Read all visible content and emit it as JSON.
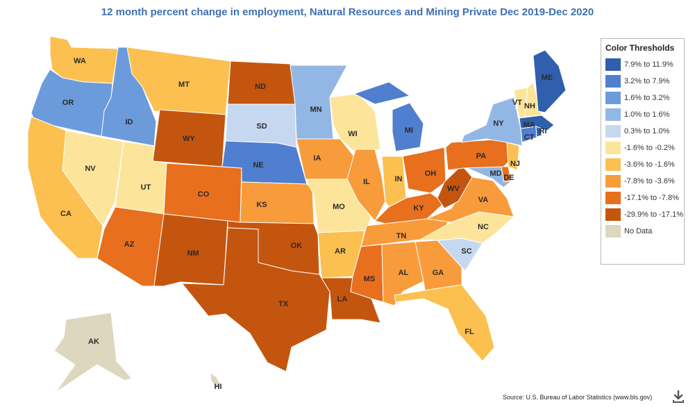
{
  "title": "12 month percent change in employment, Natural Resources and Mining Private Dec 2019-Dec 2020",
  "legend": {
    "title": "Color Thresholds",
    "items": [
      {
        "label": "7.9% to 11.9%",
        "color": "#2f5fad"
      },
      {
        "label": "3.2% to 7.9%",
        "color": "#4f7fce"
      },
      {
        "label": "1.6% to 3.2%",
        "color": "#6b9bdb"
      },
      {
        "label": "1.0% to 1.6%",
        "color": "#93b7e5"
      },
      {
        "label": "0.3% to 1.0%",
        "color": "#c5d8f0"
      },
      {
        "label": "-1.6% to -0.2%",
        "color": "#fce59a"
      },
      {
        "label": "-3.6% to -1.6%",
        "color": "#fbc04f"
      },
      {
        "label": "-7.8% to -3.6%",
        "color": "#f89b3a"
      },
      {
        "label": "-17.1% to -7.8%",
        "color": "#e76f1d"
      },
      {
        "label": "-29.9% to -17.1%",
        "color": "#c4550f"
      },
      {
        "label": "No Data",
        "color": "#ddd7c0"
      }
    ]
  },
  "states": [
    {
      "code": "WA",
      "bin": 6
    },
    {
      "code": "OR",
      "bin": 2
    },
    {
      "code": "CA",
      "bin": 6
    },
    {
      "code": "ID",
      "bin": 2
    },
    {
      "code": "NV",
      "bin": 5
    },
    {
      "code": "MT",
      "bin": 6
    },
    {
      "code": "WY",
      "bin": 9
    },
    {
      "code": "UT",
      "bin": 5
    },
    {
      "code": "AZ",
      "bin": 8
    },
    {
      "code": "CO",
      "bin": 8
    },
    {
      "code": "NM",
      "bin": 9
    },
    {
      "code": "ND",
      "bin": 9
    },
    {
      "code": "SD",
      "bin": 4
    },
    {
      "code": "NE",
      "bin": 1
    },
    {
      "code": "KS",
      "bin": 7
    },
    {
      "code": "OK",
      "bin": 9
    },
    {
      "code": "TX",
      "bin": 9
    },
    {
      "code": "MN",
      "bin": 3
    },
    {
      "code": "IA",
      "bin": 7
    },
    {
      "code": "MO",
      "bin": 5
    },
    {
      "code": "AR",
      "bin": 6
    },
    {
      "code": "LA",
      "bin": 9
    },
    {
      "code": "WI",
      "bin": 5
    },
    {
      "code": "IL",
      "bin": 7
    },
    {
      "code": "MI",
      "bin": 1
    },
    {
      "code": "IN",
      "bin": 6
    },
    {
      "code": "OH",
      "bin": 8
    },
    {
      "code": "KY",
      "bin": 8
    },
    {
      "code": "TN",
      "bin": 7
    },
    {
      "code": "MS",
      "bin": 8
    },
    {
      "code": "AL",
      "bin": 7
    },
    {
      "code": "GA",
      "bin": 7
    },
    {
      "code": "FL",
      "bin": 6
    },
    {
      "code": "SC",
      "bin": 4
    },
    {
      "code": "NC",
      "bin": 5
    },
    {
      "code": "VA",
      "bin": 7
    },
    {
      "code": "WV",
      "bin": 9
    },
    {
      "code": "MD",
      "bin": 3
    },
    {
      "code": "DE",
      "bin": 8
    },
    {
      "code": "PA",
      "bin": 8
    },
    {
      "code": "NJ",
      "bin": 6
    },
    {
      "code": "NY",
      "bin": 3
    },
    {
      "code": "CT",
      "bin": 1
    },
    {
      "code": "RI",
      "bin": 0
    },
    {
      "code": "MA",
      "bin": 0
    },
    {
      "code": "VT",
      "bin": 5
    },
    {
      "code": "NH",
      "bin": 5
    },
    {
      "code": "ME",
      "bin": 0
    },
    {
      "code": "AK",
      "bin": 10
    },
    {
      "code": "HI",
      "bin": 10
    }
  ],
  "source": "Source: U.S. Bureau of Labor Statistics (www.bls.gov)",
  "icons": {
    "download": "download-icon"
  }
}
